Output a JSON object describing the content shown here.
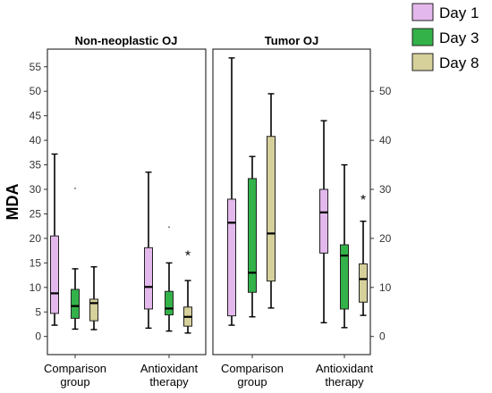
{
  "chart_data": {
    "type": "box",
    "ylabel": "MDA",
    "x_categories": [
      "Comparison\ngroup",
      "Antioxidant\ntherapy"
    ],
    "legend": {
      "placement": "top-right",
      "entries": [
        {
          "name": "Day 1",
          "color": "#e3b8ec"
        },
        {
          "name": "Day 3",
          "color": "#33b24a"
        },
        {
          "name": "Day 8",
          "color": "#d6d09a"
        }
      ]
    },
    "panels": [
      {
        "title": "Non-neoplastic OJ",
        "y_axis_side": "left",
        "ylim": [
          -2,
          58
        ],
        "yticks": [
          0,
          5,
          10,
          15,
          20,
          25,
          30,
          35,
          40,
          45,
          50,
          55
        ],
        "groups": [
          {
            "category": "Comparison\ngroup",
            "boxes": [
              {
                "series": "Day 1",
                "min": 2.3,
                "q1": 4.7,
                "median": 8.8,
                "q3": 20.5,
                "max": 37.2
              },
              {
                "series": "Day 3",
                "min": 1.5,
                "q1": 3.7,
                "median": 6.2,
                "q3": 9.6,
                "max": 13.8,
                "outliers": [
                  30.2
                ]
              },
              {
                "series": "Day 8",
                "min": 1.4,
                "q1": 3.2,
                "median": 6.8,
                "q3": 7.6,
                "max": 14.2
              }
            ]
          },
          {
            "category": "Antioxidant\ntherapy",
            "boxes": [
              {
                "series": "Day 1",
                "min": 1.7,
                "q1": 5.6,
                "median": 10.1,
                "q3": 18.1,
                "max": 33.5
              },
              {
                "series": "Day 3",
                "min": 1.1,
                "q1": 4.4,
                "median": 5.7,
                "q3": 9.2,
                "max": 15.0,
                "outliers": [
                  22.3
                ]
              },
              {
                "series": "Day 8",
                "min": 0.7,
                "q1": 2.1,
                "median": 4.0,
                "q3": 6.0,
                "max": 11.4,
                "outliers": [
                  16.8
                ],
                "outlier_marker": "*"
              }
            ]
          }
        ]
      },
      {
        "title": "Tumor OJ",
        "y_axis_side": "right",
        "ylim": [
          -2,
          58
        ],
        "yticks": [
          0,
          10,
          20,
          30,
          40,
          50
        ],
        "groups": [
          {
            "category": "Comparison\ngroup",
            "boxes": [
              {
                "series": "Day 1",
                "min": 2.3,
                "q1": 4.2,
                "median": 23.2,
                "q3": 28.0,
                "max": 56.8
              },
              {
                "series": "Day 3",
                "min": 4.0,
                "q1": 9.0,
                "median": 13.0,
                "q3": 32.2,
                "max": 36.7
              },
              {
                "series": "Day 8",
                "min": 5.8,
                "q1": 11.3,
                "median": 21.0,
                "q3": 40.8,
                "max": 49.5
              }
            ]
          },
          {
            "category": "Antioxidant\ntherapy",
            "boxes": [
              {
                "series": "Day 1",
                "min": 2.8,
                "q1": 17.0,
                "median": 25.3,
                "q3": 30.0,
                "max": 44.0
              },
              {
                "series": "Day 3",
                "min": 1.8,
                "q1": 5.6,
                "median": 16.5,
                "q3": 18.7,
                "max": 35.0
              },
              {
                "series": "Day 8",
                "min": 4.3,
                "q1": 7.0,
                "median": 11.7,
                "q3": 14.8,
                "max": 23.5,
                "outliers": [
                  28.2
                ],
                "outlier_marker": "*"
              }
            ]
          }
        ]
      }
    ]
  }
}
